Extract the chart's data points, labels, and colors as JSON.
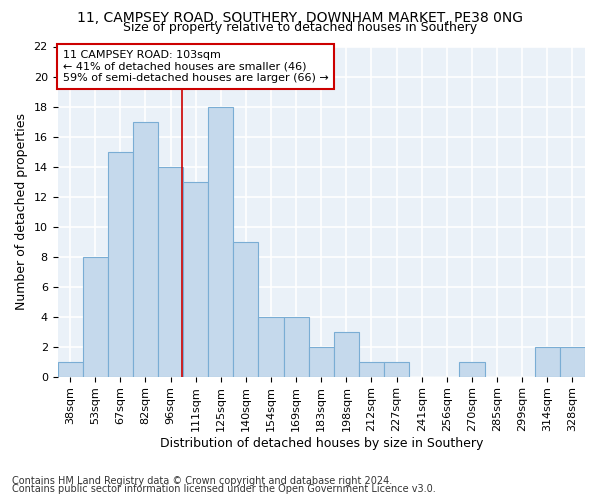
{
  "title1": "11, CAMPSEY ROAD, SOUTHERY, DOWNHAM MARKET, PE38 0NG",
  "title2": "Size of property relative to detached houses in Southery",
  "xlabel": "Distribution of detached houses by size in Southery",
  "ylabel": "Number of detached properties",
  "categories": [
    "38sqm",
    "53sqm",
    "67sqm",
    "82sqm",
    "96sqm",
    "111sqm",
    "125sqm",
    "140sqm",
    "154sqm",
    "169sqm",
    "183sqm",
    "198sqm",
    "212sqm",
    "227sqm",
    "241sqm",
    "256sqm",
    "270sqm",
    "285sqm",
    "299sqm",
    "314sqm",
    "328sqm"
  ],
  "values": [
    1,
    8,
    15,
    17,
    14,
    13,
    18,
    9,
    4,
    4,
    2,
    3,
    1,
    1,
    0,
    0,
    1,
    0,
    0,
    2,
    2
  ],
  "bar_color": "#c5d9ec",
  "bar_edge_color": "#7aadd4",
  "annotation_text": "11 CAMPSEY ROAD: 103sqm\n← 41% of detached houses are smaller (46)\n59% of semi-detached houses are larger (66) →",
  "annotation_box_color": "#ffffff",
  "annotation_box_edge_color": "#cc0000",
  "red_line_x": 4.5,
  "ylim": [
    0,
    22
  ],
  "yticks": [
    0,
    2,
    4,
    6,
    8,
    10,
    12,
    14,
    16,
    18,
    20,
    22
  ],
  "footer1": "Contains HM Land Registry data © Crown copyright and database right 2024.",
  "footer2": "Contains public sector information licensed under the Open Government Licence v3.0.",
  "bg_color": "#ffffff",
  "plot_bg_color": "#eaf1f8",
  "grid_color": "#ffffff",
  "title1_fontsize": 10,
  "title2_fontsize": 9,
  "xlabel_fontsize": 9,
  "ylabel_fontsize": 9,
  "tick_fontsize": 8,
  "annotation_fontsize": 8,
  "footer_fontsize": 7
}
